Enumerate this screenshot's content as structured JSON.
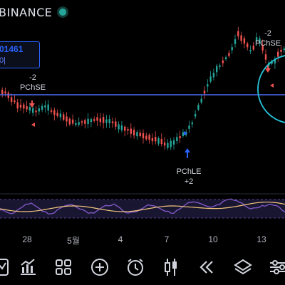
{
  "header": {
    "title": "BINANCE"
  },
  "price_tag": {
    "line1": "01461",
    "line2": "0|"
  },
  "signals": [
    {
      "id": "pchse-left",
      "count": "-2",
      "label": "PChSE"
    },
    {
      "id": "pchle",
      "label": "PChLE",
      "count": "+2"
    },
    {
      "id": "pchse-right",
      "count": "-2",
      "label": "PChSE"
    }
  ],
  "x_axis": {
    "labels": [
      "28",
      "5월",
      "4",
      "7",
      "10",
      "13"
    ]
  },
  "colors": {
    "up": "#26a69a",
    "down": "#ef5350",
    "level_line": "#4c6ef5",
    "annotation_circle": "#26c6da",
    "oscillator_a": "#7e57c2",
    "oscillator_b": "#f5c77e"
  },
  "toolbar": {
    "items": [
      {
        "name": "indicators-icon"
      },
      {
        "name": "chart-type-icon"
      },
      {
        "name": "layouts-icon"
      },
      {
        "name": "add-icon"
      },
      {
        "name": "alert-clock-icon"
      },
      {
        "name": "candles-icon"
      },
      {
        "name": "rewind-icon"
      },
      {
        "name": "layers-icon"
      },
      {
        "name": "settings-sliders-icon"
      }
    ]
  }
}
